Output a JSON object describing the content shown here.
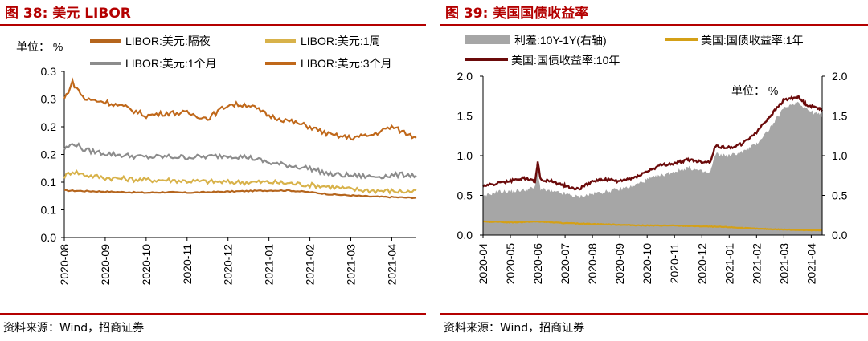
{
  "left_panel": {
    "title": "图 38:  美元 LIBOR",
    "source": "资料来源：Wind，招商证券"
  },
  "right_panel": {
    "title": "图 39:  美国国债收益率",
    "source": "资料来源：Wind，招商证券"
  },
  "chart_data": [
    {
      "type": "line",
      "title": "美元 LIBOR",
      "unit_label": "单位： %",
      "y_tick_labels": [
        "0.0",
        "0.1",
        "0.1",
        "0.2",
        "0.2",
        "0.3",
        "0.3"
      ],
      "y_tick_values": [
        0,
        0.05,
        0.1,
        0.15,
        0.2,
        0.25,
        0.3
      ],
      "ylim": [
        0,
        0.3
      ],
      "x_tick_labels": [
        "2020-08",
        "2020-09",
        "2020-10",
        "2020-11",
        "2020-12",
        "2021-01",
        "2021-02",
        "2021-03",
        "2021-04"
      ],
      "x_month_index": [
        0,
        1,
        2,
        3,
        4,
        5,
        6,
        7,
        8
      ],
      "xlim": [
        0,
        8.6
      ],
      "legend_position": "top",
      "series": [
        {
          "name": "LIBOR:美元:隔夜",
          "color": "#b5651d",
          "x": [
            0,
            0.5,
            1,
            1.5,
            2,
            2.5,
            3,
            3.5,
            4,
            4.5,
            5,
            5.5,
            6,
            6.5,
            7,
            7.5,
            8,
            8.4,
            8.6
          ],
          "values": [
            0.085,
            0.084,
            0.083,
            0.082,
            0.081,
            0.082,
            0.081,
            0.082,
            0.083,
            0.084,
            0.085,
            0.085,
            0.082,
            0.078,
            0.076,
            0.074,
            0.073,
            0.072,
            0.072
          ]
        },
        {
          "name": "LIBOR:美元:1周",
          "color": "#d8b24a",
          "x": [
            0,
            0.2,
            0.5,
            1,
            1.5,
            2,
            2.5,
            3,
            3.5,
            4,
            4.5,
            5,
            5.5,
            6,
            6.5,
            7,
            7.5,
            8,
            8.4,
            8.6
          ],
          "values": [
            0.11,
            0.12,
            0.113,
            0.108,
            0.106,
            0.104,
            0.104,
            0.102,
            0.101,
            0.1,
            0.1,
            0.1,
            0.098,
            0.095,
            0.092,
            0.087,
            0.085,
            0.084,
            0.083,
            0.085
          ]
        },
        {
          "name": "LIBOR:美元:1个月",
          "color": "#8c8c8c",
          "x": [
            0,
            0.25,
            0.5,
            1,
            1.5,
            2,
            2.5,
            3,
            3.5,
            4,
            4.5,
            5,
            5.5,
            6,
            6.5,
            7,
            7.5,
            8,
            8.4,
            8.6
          ],
          "values": [
            0.16,
            0.17,
            0.158,
            0.152,
            0.148,
            0.145,
            0.146,
            0.145,
            0.146,
            0.148,
            0.145,
            0.135,
            0.13,
            0.125,
            0.114,
            0.112,
            0.11,
            0.112,
            0.114,
            0.112
          ]
        },
        {
          "name": "LIBOR:美元:3个月",
          "color": "#c0681a",
          "x": [
            0,
            0.2,
            0.5,
            1,
            1.5,
            2,
            2.5,
            3,
            3.5,
            4,
            4.5,
            5,
            5.5,
            6,
            6.5,
            7,
            7.5,
            8,
            8.3,
            8.6
          ],
          "values": [
            0.25,
            0.28,
            0.25,
            0.245,
            0.235,
            0.22,
            0.225,
            0.225,
            0.215,
            0.24,
            0.24,
            0.22,
            0.21,
            0.2,
            0.185,
            0.18,
            0.185,
            0.2,
            0.19,
            0.18
          ]
        }
      ]
    },
    {
      "type": "line+area",
      "title": "美国国债收益率",
      "unit_label": "单位： %",
      "y_left_tick_labels": [
        "0.0",
        "0.5",
        "1.0",
        "1.5",
        "2.0"
      ],
      "y_right_tick_labels": [
        "0.0",
        "0.5",
        "1.0",
        "1.5",
        "2.0"
      ],
      "y_tick_values": [
        0,
        0.5,
        1.0,
        1.5,
        2.0
      ],
      "ylim": [
        0,
        2.0
      ],
      "y2lim": [
        0,
        2.0
      ],
      "x_tick_labels": [
        "2020-04",
        "2020-05",
        "2020-06",
        "2020-07",
        "2020-08",
        "2020-09",
        "2020-10",
        "2020-11",
        "2020-12",
        "2021-01",
        "2021-02",
        "2021-03",
        "2021-04"
      ],
      "x_month_index": [
        0,
        1,
        2,
        3,
        4,
        5,
        6,
        7,
        8,
        9,
        10,
        11,
        12
      ],
      "xlim": [
        0,
        12.4
      ],
      "legend_position": "top",
      "series": [
        {
          "name": "利差:10Y-1Y(右轴)",
          "kind": "area",
          "axis": "right",
          "color": "#a6a6a6",
          "x": [
            0,
            0.5,
            1,
            1.5,
            1.9,
            2.0,
            2.1,
            2.5,
            3,
            3.5,
            4,
            4.5,
            5,
            5.5,
            6,
            6.5,
            7,
            7.5,
            8,
            8.3,
            8.5,
            9,
            9.5,
            10,
            10.5,
            11,
            11.5,
            11.8,
            12,
            12.3,
            12.4
          ],
          "values": [
            0.48,
            0.55,
            0.55,
            0.57,
            0.6,
            0.82,
            0.58,
            0.55,
            0.52,
            0.48,
            0.52,
            0.55,
            0.58,
            0.62,
            0.7,
            0.75,
            0.8,
            0.85,
            0.8,
            0.78,
            1.02,
            1.0,
            1.05,
            1.15,
            1.35,
            1.6,
            1.68,
            1.6,
            1.55,
            1.52,
            1.5
          ]
        },
        {
          "name": "美国:国债收益率:1年",
          "kind": "line",
          "axis": "left",
          "color": "#d4a017",
          "x": [
            0,
            1,
            2,
            3,
            4,
            5,
            6,
            7,
            8,
            9,
            10,
            11,
            12,
            12.4
          ],
          "values": [
            0.17,
            0.16,
            0.17,
            0.15,
            0.14,
            0.13,
            0.12,
            0.12,
            0.11,
            0.1,
            0.08,
            0.07,
            0.06,
            0.06
          ]
        },
        {
          "name": "美国:国债收益率:10年",
          "kind": "line",
          "axis": "left",
          "color": "#6b0a0a",
          "x": [
            0,
            0.5,
            1,
            1.5,
            1.9,
            2.0,
            2.1,
            2.5,
            3,
            3.5,
            4,
            4.5,
            5,
            5.5,
            6,
            6.5,
            7,
            7.5,
            8,
            8.3,
            8.5,
            9,
            9.5,
            10,
            10.5,
            11,
            11.5,
            11.8,
            12,
            12.3,
            12.4
          ],
          "values": [
            0.62,
            0.65,
            0.68,
            0.72,
            0.68,
            0.92,
            0.7,
            0.68,
            0.62,
            0.58,
            0.68,
            0.7,
            0.68,
            0.72,
            0.8,
            0.88,
            0.9,
            0.95,
            0.92,
            0.92,
            1.12,
            1.1,
            1.15,
            1.3,
            1.5,
            1.7,
            1.74,
            1.65,
            1.62,
            1.6,
            1.58
          ]
        }
      ]
    }
  ]
}
